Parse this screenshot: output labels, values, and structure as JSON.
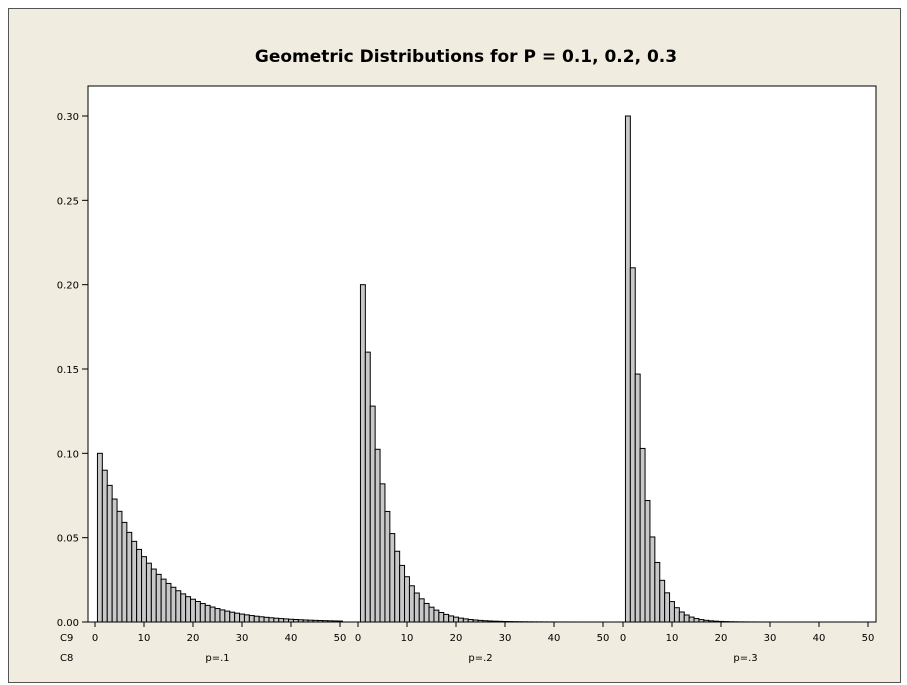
{
  "chart_data": {
    "type": "bar",
    "title": "Geometric Distributions for P = 0.1, 0.2, 0.3",
    "xlabel": "",
    "ylabel": "",
    "ylim": [
      0,
      0.32
    ],
    "yticks": [
      "0.00",
      "0.05",
      "0.10",
      "0.15",
      "0.20",
      "0.25",
      "0.30"
    ],
    "xticks": [
      "0",
      "10",
      "20",
      "30",
      "40",
      "50"
    ],
    "row_labels": [
      "C9",
      "C8"
    ],
    "x_range": [
      1,
      50
    ],
    "grid": false,
    "legend": "none",
    "bar_color": "#c8c8c8",
    "panels": [
      {
        "label": "p=.1",
        "p": 0.1
      },
      {
        "label": "p=.2",
        "p": 0.2
      },
      {
        "label": "p=.3",
        "p": 0.3
      }
    ]
  }
}
